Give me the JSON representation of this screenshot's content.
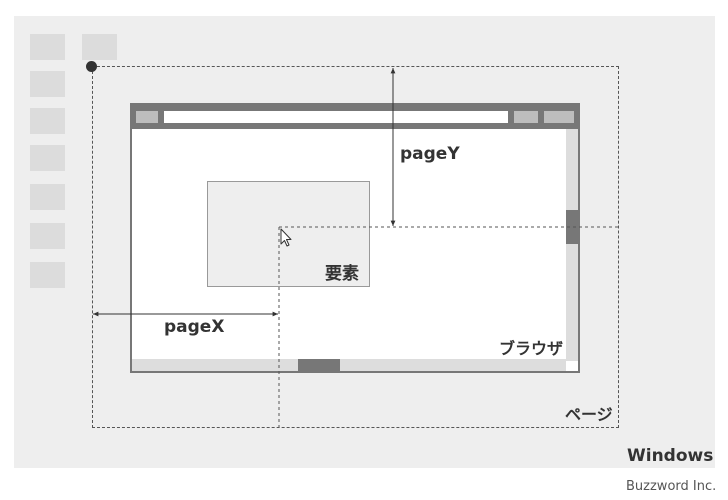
{
  "labels": {
    "page_y": "pageY",
    "page_x": "pageX",
    "element": "要素",
    "browser": "ブラウザ",
    "page": "ページ",
    "windows": "Windows",
    "credit": "Buzzword Inc."
  },
  "colors": {
    "desktop_bg": "#eeeeee",
    "tile": "#dcdcdc",
    "browser_chrome": "#777777",
    "text": "#333333"
  },
  "icons": [
    "mouse-cursor-icon"
  ]
}
